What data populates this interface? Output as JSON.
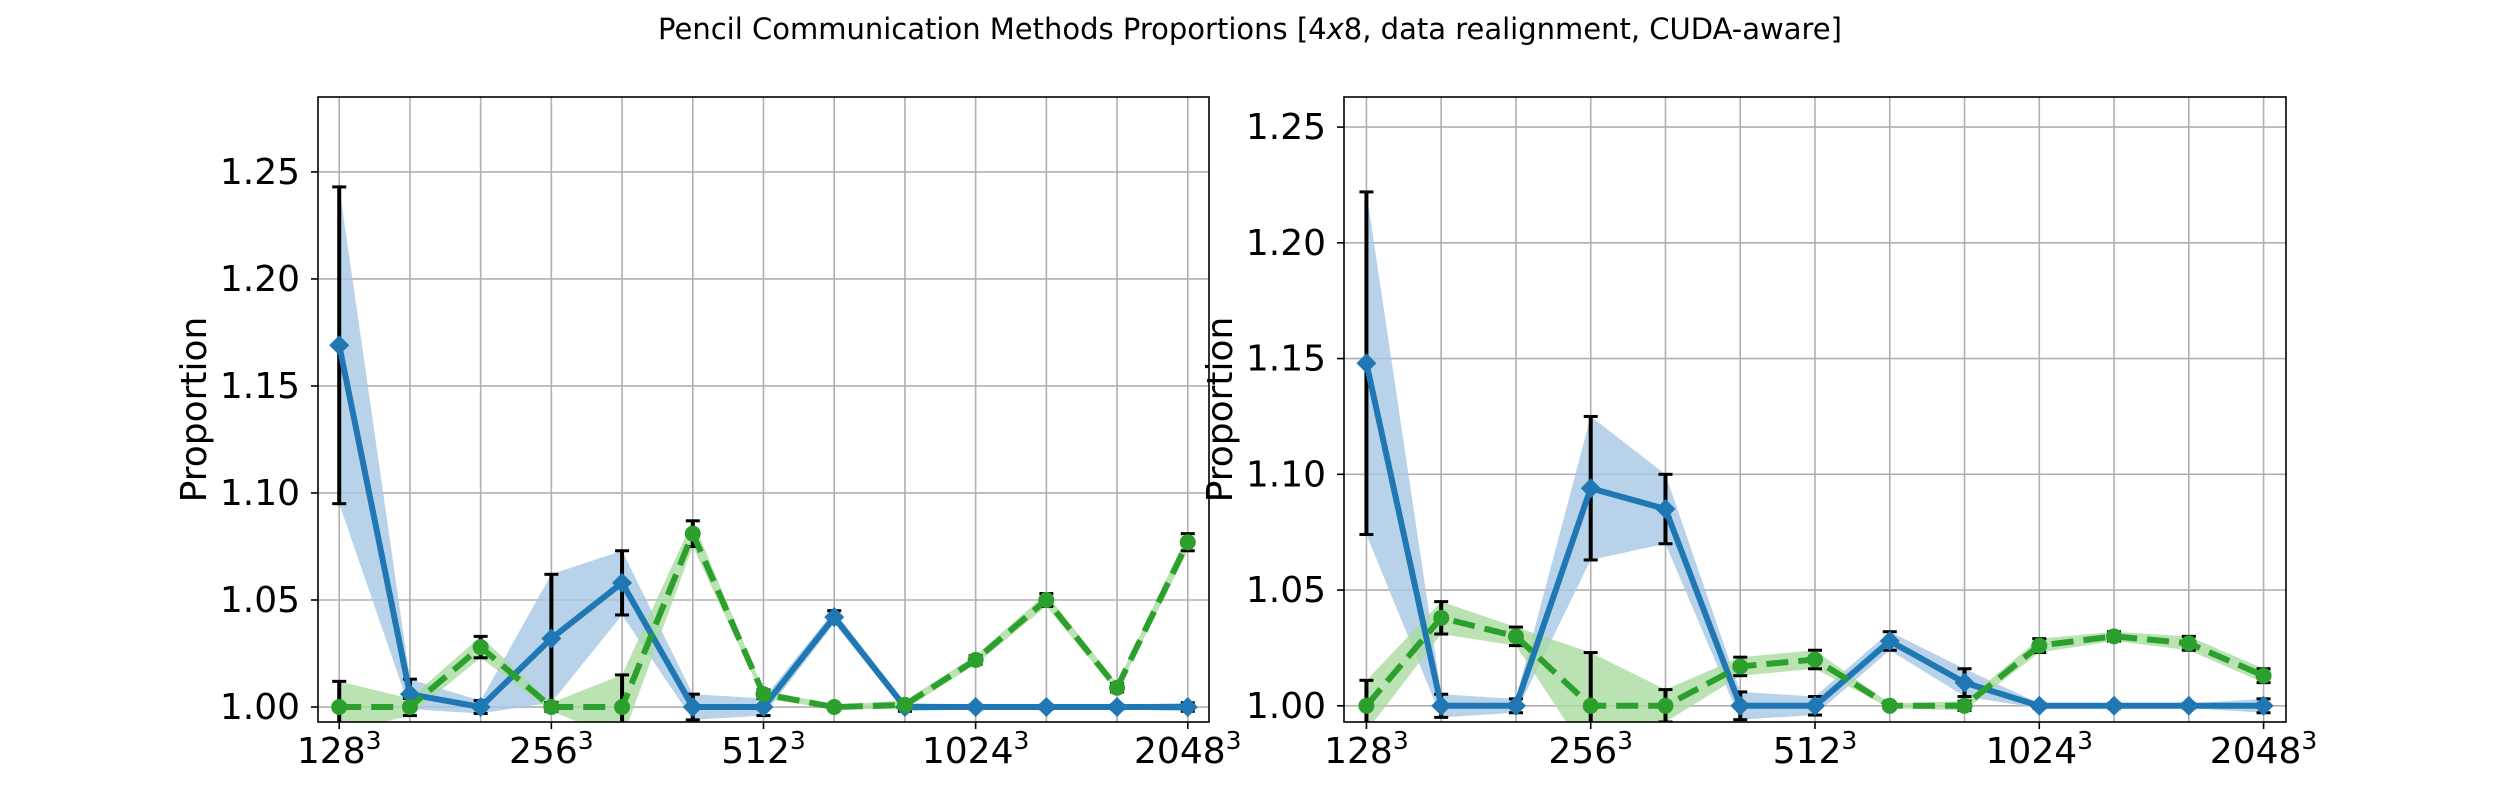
{
  "title": "Pencil Communication Methods Proportions [4x8, data realignment, CUDA-aware]",
  "title_parts": {
    "before": "Pencil Communication Methods Proportions [4",
    "italic": "x",
    "after": "8, data realignment, CUDA-aware]"
  },
  "colors": {
    "blue": "#1f77b4",
    "green": "#2ca02c",
    "blue_band": "#a6c8e3",
    "green_band": "#a9dba0",
    "grid": "#b0b0b0",
    "errorbar": "#000000"
  },
  "chart_data": [
    {
      "type": "line",
      "ylabel": "Proportion",
      "ylim": [
        0.993,
        1.285
      ],
      "yticks": [
        1.0,
        1.05,
        1.1,
        1.15,
        1.2,
        1.25
      ],
      "ytick_labels": [
        "1.00",
        "1.05",
        "1.10",
        "1.15",
        "1.20",
        "1.25"
      ],
      "xlim": [
        -0.3,
        12.3
      ],
      "xticks": [
        0,
        3,
        6,
        9,
        12
      ],
      "xtick_bases": [
        "128",
        "256",
        "512",
        "1024",
        "2048"
      ],
      "xtick_exponent": "3",
      "grid": true,
      "series": [
        {
          "color": "blue",
          "style": "solid",
          "marker": "diamond",
          "x": [
            0,
            1,
            2,
            3,
            4,
            5,
            6,
            7,
            8,
            9,
            10,
            11,
            12
          ],
          "values": [
            1.169,
            1.006,
            1.0,
            1.032,
            1.058,
            1.0,
            1.0,
            1.042,
            1.0,
            1.0,
            1.0,
            1.0,
            1.0
          ],
          "err": [
            0.074,
            0.007,
            0.003,
            0.03,
            0.015,
            0.006,
            0.004,
            0.003,
            0.002,
            0.001,
            0.001,
            0.001,
            0.002
          ]
        },
        {
          "color": "green",
          "style": "dashed",
          "marker": "circle",
          "x": [
            0,
            1,
            2,
            3,
            4,
            5,
            6,
            7,
            8,
            9,
            10,
            11,
            12
          ],
          "values": [
            1.0,
            1.0,
            1.028,
            1.0,
            1.0,
            1.081,
            1.006,
            1.0,
            1.001,
            1.022,
            1.05,
            1.009,
            1.077
          ],
          "err": [
            0.012,
            0.004,
            0.005,
            0.002,
            0.015,
            0.006,
            0.002,
            0.001,
            0.002,
            0.002,
            0.003,
            0.002,
            0.004
          ]
        }
      ]
    },
    {
      "type": "line",
      "ylabel": "Proportion",
      "ylim": [
        0.993,
        1.263
      ],
      "yticks": [
        1.0,
        1.05,
        1.1,
        1.15,
        1.2,
        1.25
      ],
      "ytick_labels": [
        "1.00",
        "1.05",
        "1.10",
        "1.15",
        "1.20",
        "1.25"
      ],
      "xlim": [
        -0.3,
        12.3
      ],
      "xticks": [
        0,
        3,
        6,
        9,
        12
      ],
      "xtick_bases": [
        "128",
        "256",
        "512",
        "1024",
        "2048"
      ],
      "xtick_exponent": "3",
      "grid": true,
      "series": [
        {
          "color": "blue",
          "style": "solid",
          "marker": "diamond",
          "x": [
            0,
            1,
            2,
            3,
            4,
            5,
            6,
            7,
            8,
            9,
            10,
            11,
            12
          ],
          "values": [
            1.148,
            1.0,
            1.0,
            1.094,
            1.085,
            1.0,
            1.0,
            1.028,
            1.01,
            1.0,
            1.0,
            1.0,
            1.0
          ],
          "err": [
            0.074,
            0.005,
            0.003,
            0.031,
            0.015,
            0.006,
            0.004,
            0.004,
            0.006,
            0.001,
            0.001,
            0.001,
            0.003
          ]
        },
        {
          "color": "green",
          "style": "dashed",
          "marker": "circle",
          "x": [
            0,
            1,
            2,
            3,
            4,
            5,
            6,
            7,
            8,
            9,
            10,
            11,
            12
          ],
          "values": [
            1.0,
            1.038,
            1.03,
            1.0,
            1.0,
            1.017,
            1.02,
            1.0,
            1.0,
            1.026,
            1.03,
            1.027,
            1.013
          ],
          "err": [
            0.011,
            0.007,
            0.004,
            0.023,
            0.007,
            0.004,
            0.004,
            0.001,
            0.002,
            0.003,
            0.002,
            0.003,
            0.003
          ]
        }
      ]
    }
  ]
}
